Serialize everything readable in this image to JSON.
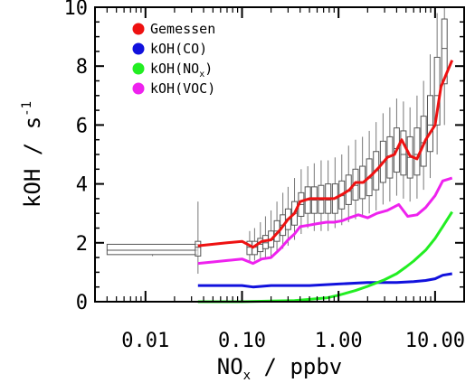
{
  "chart_data": {
    "type": "line",
    "x_scale": "log",
    "xlim": [
      0.003,
      20
    ],
    "ylim": [
      0,
      10
    ],
    "xticks": [
      {
        "value": 0.01,
        "label": "0.01"
      },
      {
        "value": 0.1,
        "label": "0.10"
      },
      {
        "value": 1.0,
        "label": "1.00"
      },
      {
        "value": 10.0,
        "label": "10.00"
      }
    ],
    "yticks": [
      {
        "value": 0,
        "label": "0"
      },
      {
        "value": 2,
        "label": "2"
      },
      {
        "value": 4,
        "label": "4"
      },
      {
        "value": 6,
        "label": "6"
      },
      {
        "value": 8,
        "label": "8"
      },
      {
        "value": 10,
        "label": "10"
      }
    ],
    "xlabel": {
      "main": "NO",
      "sub": "x",
      "rest": " / ppbv"
    },
    "ylabel": {
      "main": "kOH / s",
      "sup": "-1"
    },
    "legend": {
      "placement": "top-left",
      "entries": [
        {
          "main": "Gemessen",
          "sub": "",
          "rest": "",
          "color": "#ee1111"
        },
        {
          "main": "kOH(CO)",
          "sub": "",
          "rest": "",
          "color": "#1111dd"
        },
        {
          "main": "kOH(NO",
          "sub": "x",
          "rest": ")",
          "color": "#22ee22"
        },
        {
          "main": "kOH(VOC)",
          "sub": "",
          "rest": "",
          "color": "#ee22ee"
        }
      ]
    },
    "series": [
      {
        "name": "Gemessen",
        "color": "#ee1111",
        "points": [
          [
            0.035,
            1.9
          ],
          [
            0.05,
            1.95
          ],
          [
            0.07,
            2.0
          ],
          [
            0.1,
            2.05
          ],
          [
            0.13,
            1.85
          ],
          [
            0.16,
            2.05
          ],
          [
            0.2,
            2.1
          ],
          [
            0.25,
            2.45
          ],
          [
            0.3,
            2.8
          ],
          [
            0.35,
            3.0
          ],
          [
            0.4,
            3.4
          ],
          [
            0.5,
            3.5
          ],
          [
            0.6,
            3.5
          ],
          [
            0.75,
            3.5
          ],
          [
            0.9,
            3.5
          ],
          [
            1.1,
            3.65
          ],
          [
            1.3,
            3.8
          ],
          [
            1.5,
            4.05
          ],
          [
            1.8,
            4.05
          ],
          [
            2.2,
            4.3
          ],
          [
            2.6,
            4.55
          ],
          [
            3.2,
            4.9
          ],
          [
            3.8,
            5.0
          ],
          [
            4.5,
            5.5
          ],
          [
            5.5,
            4.95
          ],
          [
            6.5,
            4.85
          ],
          [
            8,
            5.5
          ],
          [
            10,
            6.0
          ],
          [
            11.5,
            7.3
          ],
          [
            15,
            8.2
          ]
        ]
      },
      {
        "name": "kOH(CO)",
        "color": "#1111dd",
        "points": [
          [
            0.035,
            0.55
          ],
          [
            0.05,
            0.55
          ],
          [
            0.1,
            0.55
          ],
          [
            0.13,
            0.5
          ],
          [
            0.2,
            0.55
          ],
          [
            0.5,
            0.55
          ],
          [
            1,
            0.6
          ],
          [
            2,
            0.65
          ],
          [
            4,
            0.65
          ],
          [
            6,
            0.68
          ],
          [
            8,
            0.72
          ],
          [
            10,
            0.78
          ],
          [
            12,
            0.9
          ],
          [
            15,
            0.95
          ]
        ]
      },
      {
        "name": "kOH(NOx)",
        "color": "#22ee22",
        "points": [
          [
            0.035,
            0.0
          ],
          [
            0.1,
            0.0
          ],
          [
            0.2,
            0.02
          ],
          [
            0.35,
            0.04
          ],
          [
            0.5,
            0.08
          ],
          [
            0.75,
            0.13
          ],
          [
            1,
            0.22
          ],
          [
            1.5,
            0.38
          ],
          [
            2,
            0.52
          ],
          [
            3,
            0.75
          ],
          [
            4,
            0.95
          ],
          [
            5,
            1.18
          ],
          [
            6,
            1.38
          ],
          [
            8,
            1.75
          ],
          [
            10,
            2.15
          ],
          [
            12,
            2.55
          ],
          [
            15,
            3.05
          ]
        ]
      },
      {
        "name": "kOH(VOC)",
        "color": "#ee22ee",
        "points": [
          [
            0.035,
            1.3
          ],
          [
            0.05,
            1.35
          ],
          [
            0.07,
            1.4
          ],
          [
            0.1,
            1.45
          ],
          [
            0.13,
            1.3
          ],
          [
            0.16,
            1.45
          ],
          [
            0.2,
            1.5
          ],
          [
            0.25,
            1.8
          ],
          [
            0.3,
            2.1
          ],
          [
            0.35,
            2.3
          ],
          [
            0.4,
            2.55
          ],
          [
            0.5,
            2.6
          ],
          [
            0.6,
            2.65
          ],
          [
            0.75,
            2.7
          ],
          [
            0.9,
            2.7
          ],
          [
            1.1,
            2.75
          ],
          [
            1.3,
            2.85
          ],
          [
            1.6,
            2.95
          ],
          [
            2,
            2.85
          ],
          [
            2.5,
            3.0
          ],
          [
            3.2,
            3.1
          ],
          [
            4.2,
            3.3
          ],
          [
            5.2,
            2.9
          ],
          [
            6.5,
            2.95
          ],
          [
            8,
            3.2
          ],
          [
            10,
            3.6
          ],
          [
            12,
            4.1
          ],
          [
            15,
            4.2
          ]
        ]
      }
    ],
    "boxes": [
      {
        "x": 0.004,
        "x1": 0.035,
        "q1": 1.6,
        "med": 1.75,
        "q3": 1.95,
        "lo": 1.55,
        "hi": 1.95
      },
      {
        "x": 0.035,
        "lo": 0.95,
        "q1": 1.55,
        "med": 1.85,
        "q3": 2.05,
        "hi": 3.4
      },
      {
        "x": 0.12,
        "lo": 1.35,
        "q1": 1.6,
        "med": 1.85,
        "q3": 2.05,
        "hi": 2.4
      },
      {
        "x": 0.135,
        "lo": 1.4,
        "q1": 1.6,
        "med": 1.85,
        "q3": 2.05,
        "hi": 2.5
      },
      {
        "x": 0.155,
        "lo": 1.4,
        "q1": 1.7,
        "med": 1.95,
        "q3": 2.15,
        "hi": 2.7
      },
      {
        "x": 0.175,
        "lo": 1.5,
        "q1": 1.8,
        "med": 2.0,
        "q3": 2.25,
        "hi": 2.9
      },
      {
        "x": 0.2,
        "lo": 1.5,
        "q1": 1.85,
        "med": 2.1,
        "q3": 2.4,
        "hi": 3.1
      },
      {
        "x": 0.23,
        "lo": 1.7,
        "q1": 2.05,
        "med": 2.4,
        "q3": 2.75,
        "hi": 3.4
      },
      {
        "x": 0.265,
        "lo": 1.8,
        "q1": 2.25,
        "med": 2.6,
        "q3": 2.95,
        "hi": 3.7
      },
      {
        "x": 0.3,
        "lo": 1.9,
        "q1": 2.45,
        "med": 2.8,
        "q3": 3.15,
        "hi": 3.9
      },
      {
        "x": 0.35,
        "lo": 2.1,
        "q1": 2.6,
        "med": 3.0,
        "q3": 3.4,
        "hi": 4.2
      },
      {
        "x": 0.41,
        "lo": 2.3,
        "q1": 2.9,
        "med": 3.3,
        "q3": 3.7,
        "hi": 4.5
      },
      {
        "x": 0.48,
        "lo": 2.5,
        "q1": 3.0,
        "med": 3.45,
        "q3": 3.9,
        "hi": 4.6
      },
      {
        "x": 0.56,
        "lo": 2.4,
        "q1": 3.0,
        "med": 3.45,
        "q3": 3.9,
        "hi": 4.7
      },
      {
        "x": 0.66,
        "lo": 2.4,
        "q1": 3.0,
        "med": 3.45,
        "q3": 3.95,
        "hi": 4.8
      },
      {
        "x": 0.78,
        "lo": 2.4,
        "q1": 3.0,
        "med": 3.45,
        "q3": 4.0,
        "hi": 4.8
      },
      {
        "x": 0.92,
        "lo": 2.5,
        "q1": 3.0,
        "med": 3.5,
        "q3": 4.0,
        "hi": 4.9
      },
      {
        "x": 1.08,
        "lo": 2.6,
        "q1": 3.15,
        "med": 3.6,
        "q3": 4.1,
        "hi": 5.0
      },
      {
        "x": 1.27,
        "lo": 2.7,
        "q1": 3.3,
        "med": 3.75,
        "q3": 4.3,
        "hi": 5.3
      },
      {
        "x": 1.5,
        "lo": 2.8,
        "q1": 3.45,
        "med": 3.95,
        "q3": 4.5,
        "hi": 5.5
      },
      {
        "x": 1.77,
        "lo": 2.9,
        "q1": 3.5,
        "med": 4.05,
        "q3": 4.6,
        "hi": 5.6
      },
      {
        "x": 2.08,
        "lo": 3.0,
        "q1": 3.6,
        "med": 4.2,
        "q3": 4.85,
        "hi": 5.8
      },
      {
        "x": 2.45,
        "lo": 3.1,
        "q1": 3.8,
        "med": 4.45,
        "q3": 5.1,
        "hi": 6.1
      },
      {
        "x": 2.89,
        "lo": 3.3,
        "q1": 4.05,
        "med": 4.75,
        "q3": 5.45,
        "hi": 6.4
      },
      {
        "x": 3.4,
        "lo": 3.4,
        "q1": 4.2,
        "med": 4.95,
        "q3": 5.6,
        "hi": 6.6
      },
      {
        "x": 4.0,
        "lo": 3.6,
        "q1": 4.4,
        "med": 5.2,
        "q3": 5.9,
        "hi": 6.9
      },
      {
        "x": 4.7,
        "lo": 3.5,
        "q1": 4.3,
        "med": 5.0,
        "q3": 5.8,
        "hi": 6.8
      },
      {
        "x": 5.5,
        "lo": 3.4,
        "q1": 4.2,
        "med": 4.9,
        "q3": 5.6,
        "hi": 6.6
      },
      {
        "x": 6.5,
        "lo": 3.5,
        "q1": 4.3,
        "med": 5.0,
        "q3": 5.9,
        "hi": 7.0
      },
      {
        "x": 7.6,
        "lo": 3.8,
        "q1": 4.6,
        "med": 5.4,
        "q3": 6.3,
        "hi": 7.5
      },
      {
        "x": 8.9,
        "lo": 4.2,
        "q1": 5.1,
        "med": 6.0,
        "q3": 7.0,
        "hi": 8.4
      },
      {
        "x": 10.5,
        "lo": 5.0,
        "q1": 6.0,
        "med": 7.0,
        "q3": 8.3,
        "hi": 9.8
      },
      {
        "x": 12.5,
        "lo": 6.0,
        "q1": 7.4,
        "med": 8.6,
        "q3": 9.6,
        "hi": 10.0
      }
    ]
  }
}
